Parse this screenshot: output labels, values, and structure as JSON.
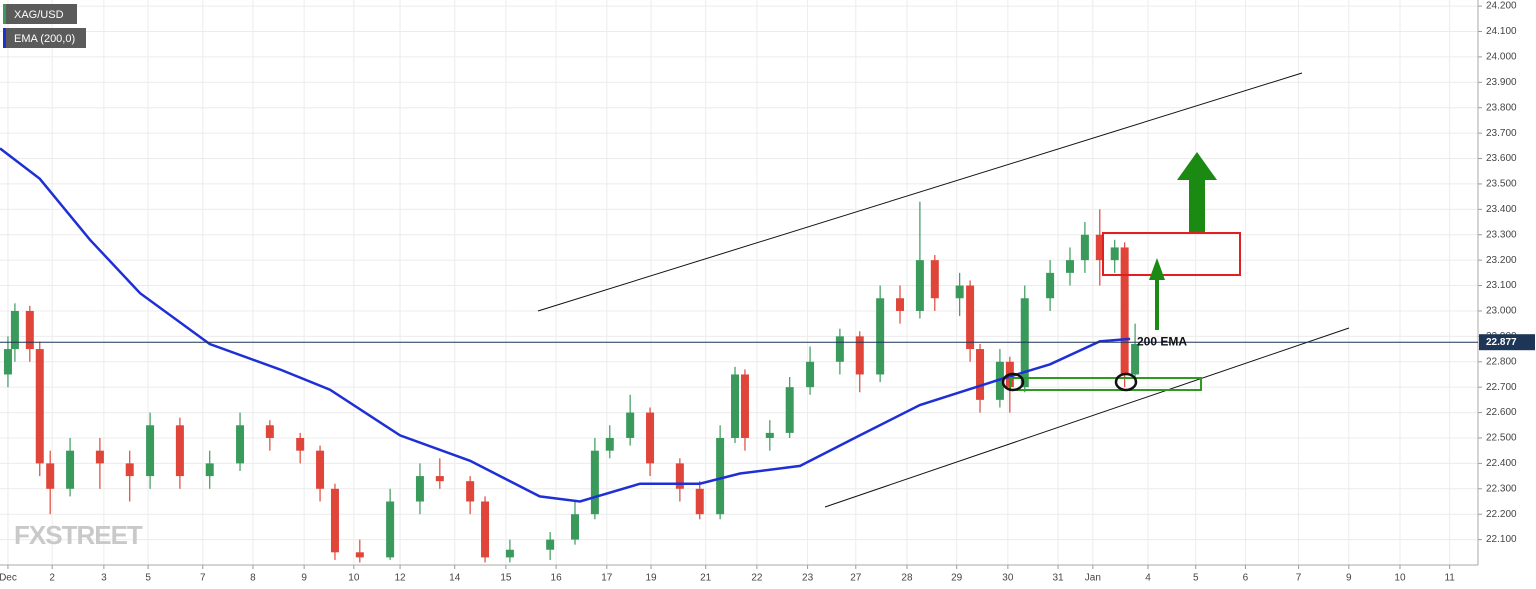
{
  "chart_data": {
    "type": "candlestick",
    "watermark": "FXSTREET",
    "series": [
      {
        "name": "XAG/USD",
        "type": "candlestick",
        "up_color": "#3a9a5b",
        "down_color": "#e0453a",
        "x": [
          0,
          0.14,
          0.44,
          0.64,
          0.85,
          1.25,
          1.85,
          2.45,
          2.86,
          3.46,
          4.06,
          4.67,
          5.27,
          5.88,
          6.28,
          6.58,
          7.08,
          7.69,
          8.29,
          8.69,
          9.3,
          9.6,
          10.1,
          10.91,
          11.41,
          11.81,
          12.11,
          12.52,
          12.92,
          13.52,
          13.92,
          14.33,
          14.63,
          14.83,
          15.33,
          15.73,
          16.14,
          16.74,
          17.14,
          17.55,
          17.95,
          18.35,
          18.65,
          19.15,
          19.36,
          19.56,
          19.96,
          20.16,
          20.46,
          20.97,
          21.37,
          21.67,
          21.97,
          22.27,
          22.47,
          22.68
        ],
        "open": [
          22.75,
          22.85,
          23.0,
          22.85,
          22.4,
          22.3,
          22.45,
          22.4,
          22.35,
          22.55,
          22.35,
          22.4,
          22.55,
          22.5,
          22.45,
          22.3,
          22.05,
          22.03,
          22.25,
          22.35,
          22.33,
          22.25,
          22.03,
          22.06,
          22.1,
          22.2,
          22.45,
          22.5,
          22.6,
          22.4,
          22.3,
          22.2,
          22.5,
          22.75,
          22.5,
          22.52,
          22.7,
          22.8,
          22.9,
          22.75,
          23.05,
          23.0,
          23.2,
          23.05,
          23.1,
          22.85,
          22.65,
          22.8,
          22.7,
          23.05,
          23.15,
          23.2,
          23.3,
          23.2,
          23.25,
          22.75
        ],
        "high": [
          22.9,
          23.03,
          23.02,
          22.88,
          22.45,
          22.5,
          22.5,
          22.45,
          22.6,
          22.58,
          22.45,
          22.6,
          22.57,
          22.52,
          22.47,
          22.32,
          22.1,
          22.3,
          22.4,
          22.42,
          22.35,
          22.27,
          22.1,
          22.13,
          22.25,
          22.5,
          22.55,
          22.67,
          22.62,
          22.42,
          22.33,
          22.55,
          22.78,
          22.77,
          22.57,
          22.74,
          22.86,
          22.93,
          22.92,
          23.1,
          23.1,
          23.43,
          23.22,
          23.15,
          23.12,
          22.87,
          22.85,
          22.82,
          23.1,
          23.2,
          23.25,
          23.35,
          23.4,
          23.28,
          23.27,
          22.95
        ],
        "low": [
          22.7,
          22.8,
          22.8,
          22.35,
          22.2,
          22.27,
          22.3,
          22.25,
          22.3,
          22.3,
          22.3,
          22.37,
          22.45,
          22.4,
          22.25,
          22.02,
          22.01,
          22.02,
          22.2,
          22.3,
          22.2,
          22.01,
          22.01,
          22.02,
          22.08,
          22.18,
          22.42,
          22.47,
          22.35,
          22.25,
          22.18,
          22.18,
          22.48,
          22.45,
          22.45,
          22.5,
          22.67,
          22.75,
          22.68,
          22.72,
          22.95,
          22.97,
          23.0,
          22.98,
          22.8,
          22.6,
          22.62,
          22.6,
          22.68,
          23.0,
          23.1,
          23.15,
          23.1,
          23.15,
          22.7,
          22.72
        ],
        "close": [
          22.85,
          23.0,
          22.85,
          22.4,
          22.3,
          22.45,
          22.4,
          22.35,
          22.55,
          22.35,
          22.4,
          22.55,
          22.5,
          22.45,
          22.3,
          22.05,
          22.03,
          22.25,
          22.35,
          22.33,
          22.25,
          22.03,
          22.06,
          22.1,
          22.2,
          22.45,
          22.5,
          22.6,
          22.4,
          22.3,
          22.2,
          22.5,
          22.75,
          22.5,
          22.52,
          22.7,
          22.8,
          22.9,
          22.75,
          23.05,
          23.0,
          23.2,
          23.05,
          23.1,
          22.85,
          22.65,
          22.8,
          22.7,
          23.05,
          23.15,
          23.2,
          23.3,
          23.2,
          23.25,
          22.75,
          22.87
        ]
      },
      {
        "name": "EMA (200,0)",
        "type": "line",
        "color": "#1f2fd6",
        "x": [
          -0.16,
          0.64,
          1.65,
          2.66,
          4.06,
          5.47,
          6.48,
          7.89,
          9.3,
          10.7,
          11.51,
          12.72,
          13.92,
          14.73,
          15.94,
          17.14,
          18.35,
          19.96,
          20.97,
          21.97,
          22.58
        ],
        "values": [
          23.64,
          23.52,
          23.28,
          23.07,
          22.87,
          22.77,
          22.69,
          22.51,
          22.41,
          22.27,
          22.25,
          22.32,
          22.32,
          22.36,
          22.39,
          22.51,
          22.63,
          22.73,
          22.79,
          22.88,
          22.89
        ]
      }
    ],
    "last_price": 22.877,
    "annotation": "200 EMA",
    "xlim": [
      -0.16,
      29.58
    ],
    "xticks": [
      {
        "value": 0,
        "label": "Dec"
      },
      {
        "value": 0.89,
        "label": "2"
      },
      {
        "value": 1.93,
        "label": "3"
      },
      {
        "value": 2.82,
        "label": "5"
      },
      {
        "value": 3.92,
        "label": "7"
      },
      {
        "value": 4.93,
        "label": "8"
      },
      {
        "value": 5.96,
        "label": "9"
      },
      {
        "value": 6.96,
        "label": "10"
      },
      {
        "value": 7.89,
        "label": "12"
      },
      {
        "value": 8.99,
        "label": "14"
      },
      {
        "value": 10.02,
        "label": "15"
      },
      {
        "value": 11.03,
        "label": "16"
      },
      {
        "value": 12.05,
        "label": "17"
      },
      {
        "value": 12.94,
        "label": "19"
      },
      {
        "value": 14.04,
        "label": "21"
      },
      {
        "value": 15.07,
        "label": "22"
      },
      {
        "value": 16.09,
        "label": "23"
      },
      {
        "value": 17.06,
        "label": "27"
      },
      {
        "value": 18.09,
        "label": "28"
      },
      {
        "value": 19.09,
        "label": "29"
      },
      {
        "value": 20.12,
        "label": "30"
      },
      {
        "value": 21.13,
        "label": "31"
      },
      {
        "value": 21.83,
        "label": "Jan"
      },
      {
        "value": 22.94,
        "label": "4"
      },
      {
        "value": 23.9,
        "label": "5"
      },
      {
        "value": 24.9,
        "label": "6"
      },
      {
        "value": 25.97,
        "label": "7"
      },
      {
        "value": 26.98,
        "label": "9"
      },
      {
        "value": 28.01,
        "label": "10"
      },
      {
        "value": 29.01,
        "label": "11"
      }
    ],
    "ylim": [
      22.0,
      24.224
    ],
    "yticks": [
      {
        "value": 22.1,
        "label": "22.100"
      },
      {
        "value": 22.2,
        "label": "22.200"
      },
      {
        "value": 22.3,
        "label": "22.300"
      },
      {
        "value": 22.4,
        "label": "22.400"
      },
      {
        "value": 22.5,
        "label": "22.500"
      },
      {
        "value": 22.6,
        "label": "22.600"
      },
      {
        "value": 22.7,
        "label": "22.700"
      },
      {
        "value": 22.8,
        "label": "22.800"
      },
      {
        "value": 22.9,
        "label": "22.900"
      },
      {
        "value": 23.0,
        "label": "23.000"
      },
      {
        "value": 23.1,
        "label": "23.100"
      },
      {
        "value": 23.2,
        "label": "23.200"
      },
      {
        "value": 23.3,
        "label": "23.300"
      },
      {
        "value": 23.4,
        "label": "23.400"
      },
      {
        "value": 23.5,
        "label": "23.500"
      },
      {
        "value": 23.6,
        "label": "23.600"
      },
      {
        "value": 23.7,
        "label": "23.700"
      },
      {
        "value": 23.8,
        "label": "23.800"
      },
      {
        "value": 23.9,
        "label": "23.900"
      },
      {
        "value": 24.0,
        "label": "24.000"
      },
      {
        "value": 24.1,
        "label": "24.100"
      },
      {
        "value": 24.2,
        "label": "24.200"
      }
    ],
    "grid": true
  }
}
